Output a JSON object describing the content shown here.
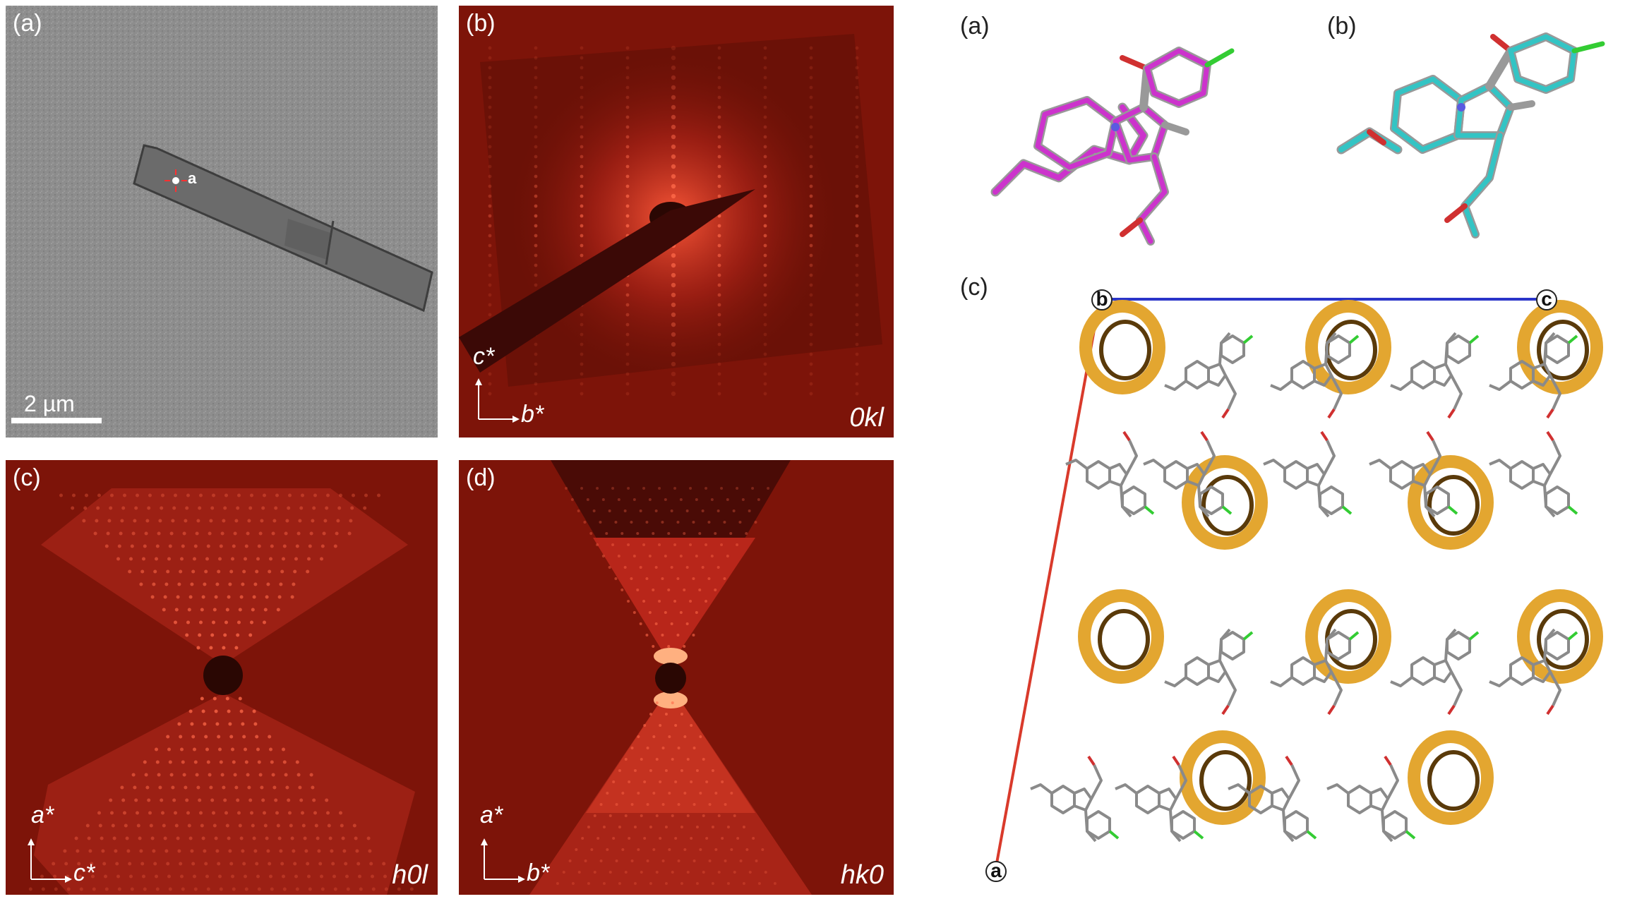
{
  "figure_left": {
    "panels": [
      {
        "id": "a",
        "label": "(a)",
        "scale_bar": "2 µm",
        "marker": "a"
      },
      {
        "id": "b",
        "label": "(b)",
        "plane": "0kl",
        "axis_up": "c*",
        "axis_right": "b*"
      },
      {
        "id": "c",
        "label": "(c)",
        "plane": "h0l",
        "axis_up": "a*",
        "axis_right": "c*"
      },
      {
        "id": "d",
        "label": "(d)",
        "plane": "hk0",
        "axis_up": "a*",
        "axis_right": "b*"
      }
    ]
  },
  "figure_right": {
    "panels": [
      {
        "id": "a",
        "label": "(a)"
      },
      {
        "id": "b",
        "label": "(b)"
      },
      {
        "id": "c",
        "label": "(c)",
        "cell_corners": {
          "top_left": "b",
          "top_right": "c",
          "bottom_left": "a"
        }
      }
    ]
  },
  "colors": {
    "diffraction_bg": "#7d1409",
    "reflection": "#ff6a4a",
    "tem_bg": "#8e8e8e",
    "void": "#e3a630",
    "cell_axis_a": "#d93a2b",
    "cell_axis_c": "#2a35c9",
    "molecule_a": "#cc33cc",
    "molecule_b": "#33c4c4"
  }
}
